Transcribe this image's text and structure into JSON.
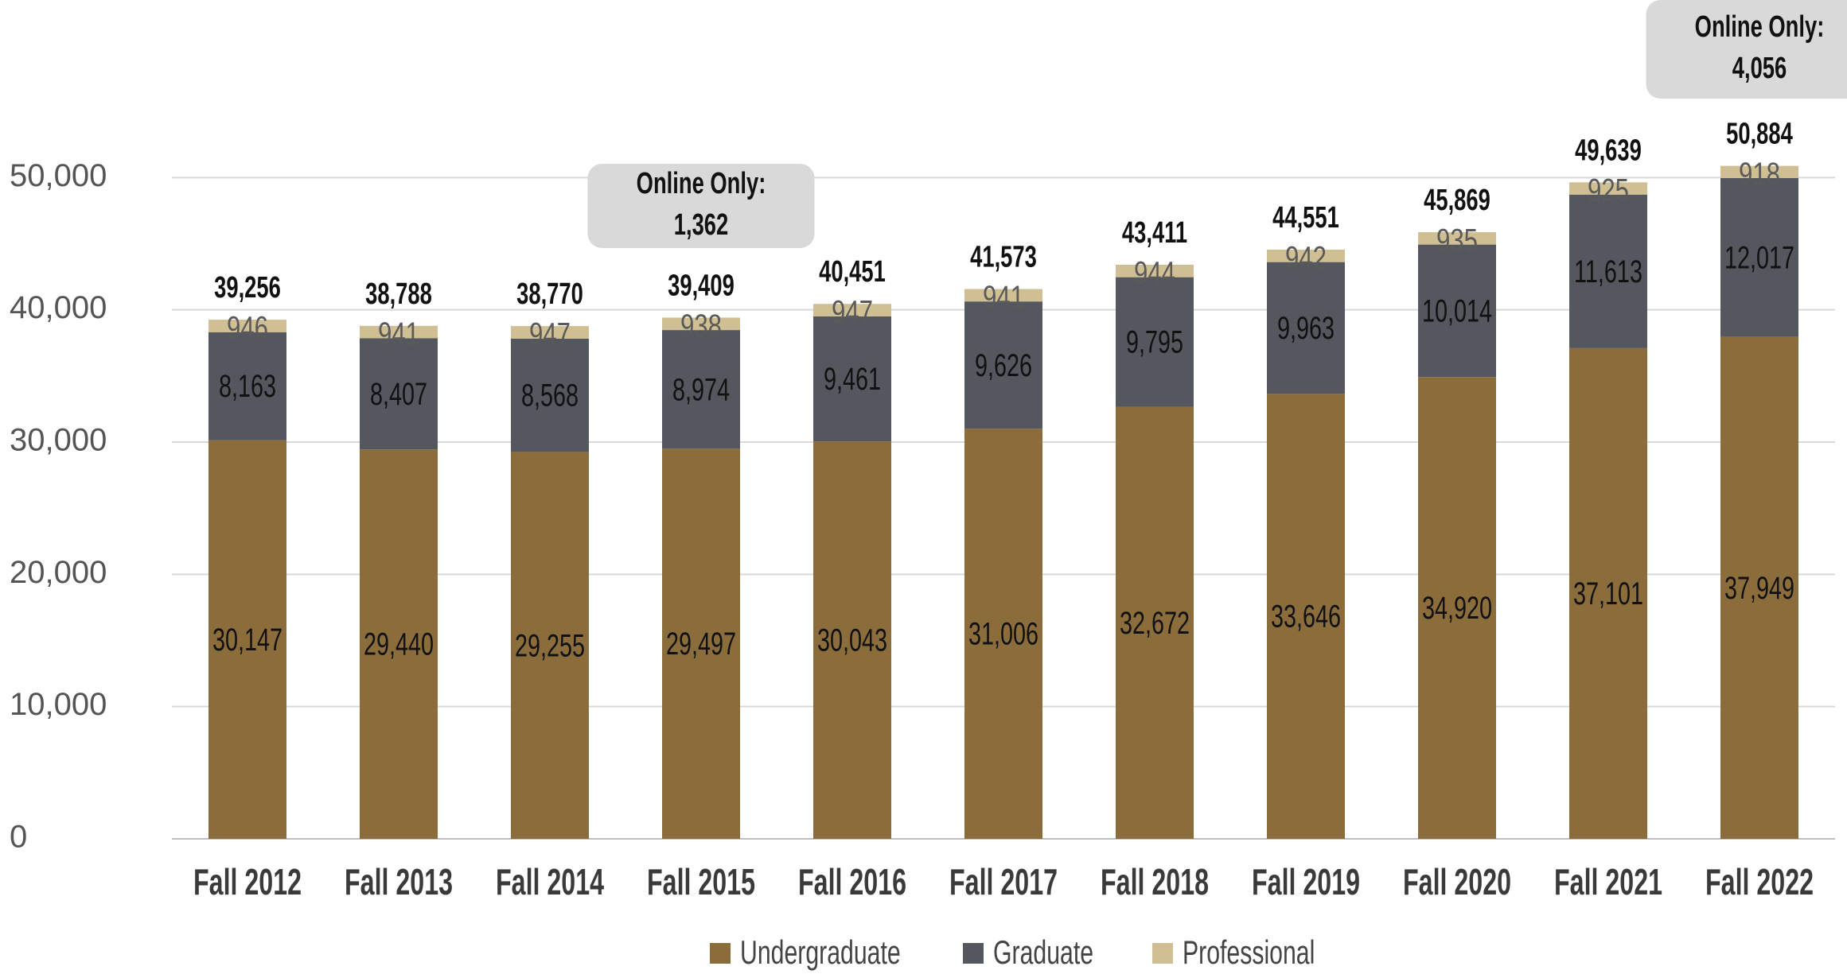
{
  "chart_data": {
    "type": "stacked_bar",
    "categories": [
      "Fall 2012",
      "Fall 2013",
      "Fall 2014",
      "Fall 2015",
      "Fall 2016",
      "Fall 2017",
      "Fall 2018",
      "Fall 2019",
      "Fall 2020",
      "Fall 2021",
      "Fall 2022"
    ],
    "series": [
      {
        "name": "Undergraduate",
        "color": "#8b6d3c",
        "values": [
          30147,
          29440,
          29255,
          29497,
          30043,
          31006,
          32672,
          33646,
          34920,
          37101,
          37949
        ],
        "value_labels": [
          "30,147",
          "29,440",
          "29,255",
          "29,497",
          "30,043",
          "31,006",
          "32,672",
          "33,646",
          "34,920",
          "37,101",
          "37,949"
        ]
      },
      {
        "name": "Graduate",
        "color": "#54575e",
        "values": [
          8163,
          8407,
          8568,
          8974,
          9461,
          9626,
          9795,
          9963,
          10014,
          11613,
          12017
        ],
        "value_labels": [
          "8,163",
          "8,407",
          "8,568",
          "8,974",
          "9,461",
          "9,626",
          "9,795",
          "9,963",
          "10,014",
          "11,613",
          "12,017"
        ]
      },
      {
        "name": "Professional",
        "color": "#cfbf93",
        "values": [
          946,
          941,
          947,
          938,
          947,
          941,
          944,
          942,
          935,
          925,
          918
        ]
      }
    ],
    "totals": {
      "values": [
        39256,
        38788,
        38770,
        39409,
        40451,
        41573,
        43411,
        44551,
        45869,
        49639,
        50884
      ],
      "value_labels": [
        "39,256",
        "38,788",
        "38,770",
        "39,409",
        "40,451",
        "41,573",
        "43,411",
        "44,551",
        "45,869",
        "49,639",
        "50,884"
      ]
    },
    "annotations": [
      {
        "text": "Online Only:",
        "category": "Fall 2015",
        "value": 1362,
        "value_label": "1,362"
      },
      {
        "text": "Online Only:",
        "category": "Fall 2022",
        "value": 4056,
        "value_label": "4,056"
      }
    ],
    "ylim": [
      0,
      60000
    ],
    "yticks": [
      0,
      {
        "value": 10000,
        "label": "10,000"
      },
      {
        "value": 20000,
        "label": "20,000"
      },
      {
        "value": 30000,
        "label": "30,000"
      },
      {
        "value": 40000,
        "label": "40,000"
      },
      {
        "value": 50000,
        "label": "50,000"
      }
    ],
    "grid": true,
    "legend": "bottom"
  }
}
